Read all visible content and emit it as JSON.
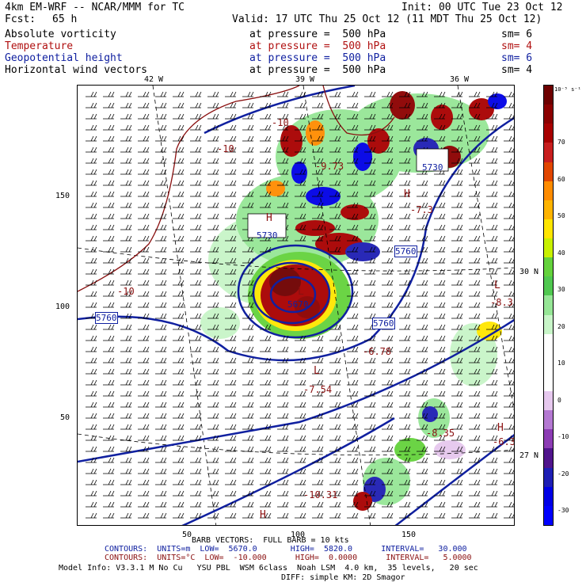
{
  "header": {
    "model": "4km EM-WRF -- NCAR/MMM for TC",
    "init": "Init: 00 UTC Tue 23 Oct 12",
    "fcst_label": "Fcst:",
    "fcst_value": "65 h",
    "valid": "Valid: 17 UTC Thu 25 Oct 12 (11 MDT Thu 25 Oct 12)"
  },
  "fields": [
    {
      "name": "Absolute vorticity",
      "level": "at pressure =  500 hPa",
      "sm": "sm= 6",
      "color": "#000000"
    },
    {
      "name": "Temperature",
      "level": "at pressure =  500 hPa",
      "sm": "sm= 4",
      "color": "#b01010"
    },
    {
      "name": "Geopotential height",
      "level": "at pressure =  500 hPa",
      "sm": "sm= 6",
      "color": "#1020a0"
    },
    {
      "name": "Horizontal wind vectors",
      "level": "at pressure =  500 hPa",
      "sm": "sm= 4",
      "color": "#000000"
    }
  ],
  "map": {
    "lon_labels": [
      "42 W",
      "39 W",
      "36 W"
    ],
    "lat_labels": [
      "30 N",
      "27 N"
    ],
    "y_ticks": [
      "150",
      "100",
      "50"
    ],
    "x_ticks": [
      "50",
      "100",
      "150"
    ],
    "height_labels": [
      "5760",
      "5760",
      "5760",
      "5730",
      "5730",
      "5670"
    ],
    "temp_labels": [
      "-10",
      "-10",
      "-10",
      "-10.31",
      "-9.73",
      "-6.78",
      "-7.54",
      "-8.35",
      "-8.3",
      "-6.3",
      "-7.3"
    ],
    "hl_labels": [
      "L",
      "L",
      "L",
      "H",
      "H",
      "H",
      "H"
    ]
  },
  "colorbar": {
    "unit": "10⁻⁵ s⁻¹",
    "labels": [
      "70",
      "60",
      "50",
      "40",
      "30",
      "20",
      "10",
      "0",
      "-10",
      "-20",
      "-30"
    ],
    "colors": [
      "#6e0000",
      "#8c0000",
      "#a80000",
      "#c81e1e",
      "#e14600",
      "#ff8c00",
      "#ffb400",
      "#ffe600",
      "#c8f000",
      "#64d23c",
      "#50c850",
      "#96e696",
      "#c8f5c8",
      "#ffffff",
      "#ffffff",
      "#ffffff",
      "#e6c8ee",
      "#b478d2",
      "#8c3cb4",
      "#50148c",
      "#1e1eb4",
      "#0000e6",
      "#0000ff"
    ]
  },
  "footer": {
    "barb_note": "BARB VECTORS:  FULL BARB = 10 kts",
    "contours1": "CONTOURS:  UNITS=m  LOW=  5670.0       HIGH=  5820.0      INTERVAL=   30.000",
    "contours2": "CONTOURS:  UNITS=°C  LOW=  -10.000      HIGH=  0.0000      INTERVAL=   5.0000",
    "model_info": "Model Info: V3.3.1 M No Cu   YSU PBL  WSM 6class  Noah LSM  4.0 km,  35 levels,   20 sec",
    "model_info2": "DIFF: simple KM: 2D Smagor"
  }
}
